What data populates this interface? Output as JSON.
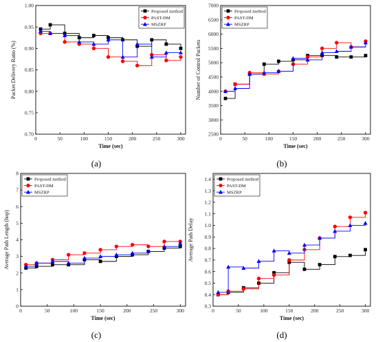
{
  "legend_order": [
    "Proposed method",
    "PAST-DM",
    "MSZRP"
  ],
  "chart_data": [
    {
      "type": "line",
      "panel_label": "(a)",
      "xlabel": "Time (sec)",
      "ylabel": "Packet Delivery Ratio (%)",
      "xlim": [
        0,
        310
      ],
      "ylim": [
        0.7,
        1.0
      ],
      "xticks": [
        0,
        50,
        100,
        150,
        200,
        250,
        300
      ],
      "yticks": [
        0.7,
        0.75,
        0.8,
        0.85,
        0.9,
        0.95,
        1.0
      ],
      "ytick_labels": [
        "0.70",
        "0.75",
        "0.80",
        "0.85",
        "0.90",
        "0.95",
        "1.00"
      ],
      "legend_position": "top-right",
      "step": true,
      "grid": false,
      "series": [
        {
          "name": "Proposed method",
          "color": "#000000",
          "marker": "square",
          "x": [
            10,
            30,
            60,
            90,
            120,
            150,
            180,
            210,
            240,
            270,
            300
          ],
          "y": [
            0.945,
            0.955,
            0.935,
            0.925,
            0.93,
            0.925,
            0.92,
            0.905,
            0.92,
            0.91,
            0.9
          ]
        },
        {
          "name": "PAST-DM",
          "color": "#ff0000",
          "marker": "circle",
          "x": [
            10,
            30,
            60,
            90,
            120,
            150,
            180,
            210,
            240,
            270,
            300
          ],
          "y": [
            0.935,
            0.935,
            0.915,
            0.91,
            0.9,
            0.88,
            0.87,
            0.86,
            0.885,
            0.872,
            0.88
          ]
        },
        {
          "name": "MSZRP",
          "color": "#0000ff",
          "marker": "triangle",
          "x": [
            10,
            30,
            60,
            90,
            120,
            150,
            180,
            210,
            240,
            270,
            300
          ],
          "y": [
            0.94,
            0.935,
            0.93,
            0.915,
            0.91,
            0.92,
            0.88,
            0.91,
            0.88,
            0.89,
            0.89
          ]
        }
      ]
    },
    {
      "type": "line",
      "panel_label": "(b)",
      "xlabel": "Time (sec)",
      "ylabel": "Number of Control Packets",
      "xlim": [
        0,
        310
      ],
      "ylim": [
        2500,
        7000
      ],
      "xticks": [
        0,
        50,
        100,
        150,
        200,
        250,
        300
      ],
      "yticks": [
        2500,
        3000,
        3500,
        4000,
        4500,
        5000,
        5500,
        6000,
        6500,
        7000
      ],
      "ytick_labels": [
        "2500",
        "3000",
        "3500",
        "4000",
        "4500",
        "5000",
        "5500",
        "6000",
        "6500",
        "7000"
      ],
      "legend_position": "top-left",
      "step": true,
      "grid": false,
      "series": [
        {
          "name": "Proposed method",
          "color": "#000000",
          "marker": "square",
          "x": [
            10,
            30,
            60,
            90,
            120,
            150,
            180,
            210,
            240,
            270,
            300
          ],
          "y": [
            3750,
            4250,
            4600,
            4950,
            5050,
            5100,
            5250,
            5250,
            5200,
            5200,
            5250
          ]
        },
        {
          "name": "PAST-DM",
          "color": "#ff0000",
          "marker": "circle",
          "x": [
            10,
            30,
            60,
            90,
            120,
            150,
            180,
            210,
            240,
            270,
            300
          ],
          "y": [
            4000,
            4250,
            4650,
            4600,
            4700,
            4950,
            5200,
            5500,
            5700,
            5550,
            5750
          ]
        },
        {
          "name": "MSZRP",
          "color": "#0000ff",
          "marker": "triangle",
          "x": [
            10,
            30,
            60,
            90,
            120,
            150,
            180,
            210,
            240,
            270,
            300
          ],
          "y": [
            4000,
            4100,
            4600,
            4650,
            4700,
            5150,
            5100,
            5350,
            5400,
            5550,
            5700
          ]
        }
      ]
    },
    {
      "type": "line",
      "panel_label": "(c)",
      "xlabel": "Time (sec)",
      "ylabel": "Average Path Length (hop)",
      "xlim": [
        0,
        310
      ],
      "ylim": [
        0,
        8
      ],
      "xticks": [
        0,
        50,
        100,
        150,
        200,
        250,
        300
      ],
      "yticks": [
        0,
        1,
        2,
        3,
        4,
        5,
        6,
        7,
        8
      ],
      "ytick_labels": [
        "0",
        "1",
        "2",
        "3",
        "4",
        "5",
        "6",
        "7",
        "8"
      ],
      "legend_position": "top-left",
      "step": true,
      "grid": false,
      "series": [
        {
          "name": "Proposed method",
          "color": "#000000",
          "marker": "square",
          "x": [
            10,
            30,
            60,
            90,
            120,
            150,
            180,
            210,
            240,
            270,
            300
          ],
          "y": [
            2.3,
            2.4,
            2.5,
            2.5,
            2.8,
            2.7,
            3.0,
            3.1,
            3.3,
            3.5,
            3.6
          ]
        },
        {
          "name": "PAST-DM",
          "color": "#ff0000",
          "marker": "circle",
          "x": [
            10,
            30,
            60,
            90,
            120,
            150,
            180,
            210,
            240,
            270,
            300
          ],
          "y": [
            2.5,
            2.6,
            2.8,
            3.1,
            3.2,
            3.4,
            3.6,
            3.7,
            3.6,
            3.9,
            3.9
          ]
        },
        {
          "name": "MSZRP",
          "color": "#0000ff",
          "marker": "triangle",
          "x": [
            10,
            30,
            60,
            90,
            120,
            150,
            180,
            210,
            240,
            270,
            300
          ],
          "y": [
            2.4,
            2.6,
            2.7,
            2.6,
            2.9,
            3.0,
            3.1,
            3.2,
            3.3,
            3.6,
            3.8
          ]
        }
      ]
    },
    {
      "type": "line",
      "panel_label": "(d)",
      "xlabel": "Time (sec)",
      "ylabel": "Average Path Delay",
      "xlim": [
        0,
        310
      ],
      "ylim": [
        0.3,
        1.45
      ],
      "xticks": [
        0,
        50,
        100,
        150,
        200,
        250,
        300
      ],
      "yticks": [
        0.3,
        0.4,
        0.5,
        0.6,
        0.7,
        0.8,
        0.9,
        1.0,
        1.1,
        1.2,
        1.3,
        1.4
      ],
      "ytick_labels": [
        "0.3",
        "0.4",
        "0.5",
        "0.6",
        "0.7",
        "0.8",
        "0.9",
        "1.0",
        "1.1",
        "1.2",
        "1.3",
        "1.4"
      ],
      "legend_position": "top-left",
      "step": true,
      "grid": false,
      "series": [
        {
          "name": "Proposed method",
          "color": "#000000",
          "marker": "square",
          "x": [
            10,
            30,
            60,
            90,
            120,
            150,
            180,
            210,
            240,
            270,
            300
          ],
          "y": [
            0.4,
            0.42,
            0.46,
            0.5,
            0.59,
            0.68,
            0.62,
            0.66,
            0.73,
            0.74,
            0.79
          ]
        },
        {
          "name": "PAST-DM",
          "color": "#ff0000",
          "marker": "circle",
          "x": [
            10,
            30,
            60,
            90,
            120,
            150,
            180,
            210,
            240,
            270,
            300
          ],
          "y": [
            0.4,
            0.43,
            0.45,
            0.54,
            0.57,
            0.7,
            0.79,
            0.89,
            0.99,
            1.07,
            1.11
          ]
        },
        {
          "name": "MSZRP",
          "color": "#0000ff",
          "marker": "triangle",
          "x": [
            10,
            30,
            60,
            90,
            120,
            150,
            180,
            210,
            240,
            270,
            300
          ],
          "y": [
            0.42,
            0.64,
            0.63,
            0.69,
            0.78,
            0.76,
            0.83,
            0.89,
            0.95,
            1.0,
            1.02
          ]
        }
      ]
    }
  ]
}
